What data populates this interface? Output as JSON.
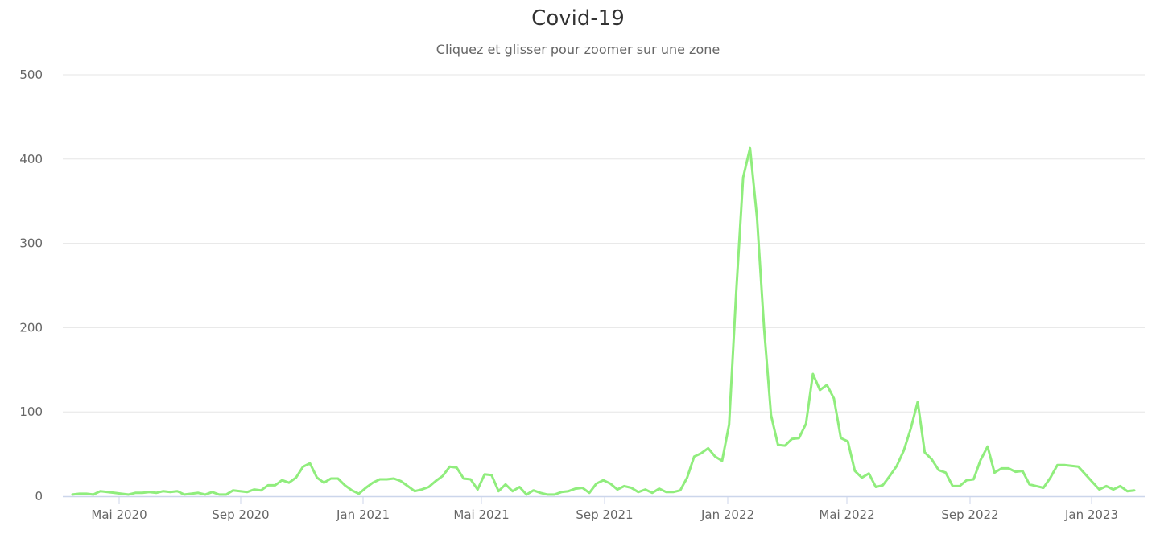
{
  "header": {
    "title": "Covid-19",
    "subtitle": "Cliquez et glisser pour zoomer sur une zone"
  },
  "colors": {
    "series": "#90ed7d",
    "grid": "#e6e6e6",
    "axis": "#ccd6eb",
    "label": "#666666"
  },
  "chart_data": {
    "type": "line",
    "title": "Covid-19",
    "subtitle": "Cliquez et glisser pour zoomer sur une zone",
    "xlabel": "",
    "ylabel": "",
    "ylim": [
      0,
      500
    ],
    "yticks": [
      0,
      100,
      200,
      300,
      400,
      500
    ],
    "xticks": [
      "Mai 2020",
      "Sep 2020",
      "Jan 2021",
      "Mai 2021",
      "Sep 2021",
      "Jan 2022",
      "Mai 2022",
      "Sep 2022",
      "Jan 2023"
    ],
    "grid": true,
    "legend": false,
    "x_start": "2020-03-16",
    "x_interval": "weekly",
    "series": [
      {
        "name": "Covid-19",
        "values": [
          2,
          3,
          3,
          2,
          6,
          5,
          4,
          3,
          2,
          4,
          4,
          5,
          4,
          6,
          5,
          6,
          2,
          3,
          4,
          2,
          5,
          2,
          2,
          7,
          6,
          5,
          8,
          7,
          13,
          13,
          19,
          16,
          22,
          35,
          39,
          22,
          16,
          21,
          21,
          13,
          7,
          3,
          10,
          16,
          20,
          20,
          21,
          18,
          12,
          6,
          8,
          11,
          18,
          24,
          35,
          34,
          21,
          20,
          8,
          26,
          25,
          6,
          14,
          6,
          11,
          2,
          7,
          4,
          2,
          2,
          5,
          6,
          9,
          10,
          4,
          15,
          19,
          15,
          8,
          12,
          10,
          5,
          8,
          4,
          9,
          5,
          5,
          7,
          22,
          47,
          51,
          57,
          47,
          42,
          85,
          240,
          378,
          413,
          330,
          200,
          96,
          61,
          60,
          68,
          69,
          86,
          145,
          126,
          132,
          116,
          69,
          65,
          30,
          22,
          27,
          11,
          13,
          24,
          36,
          54,
          80,
          112,
          52,
          44,
          31,
          28,
          12,
          12,
          19,
          20,
          43,
          59,
          28,
          33,
          33,
          29,
          30,
          14,
          12,
          10,
          22,
          37,
          37,
          36,
          35,
          26,
          17,
          8,
          12,
          8,
          12,
          6,
          7
        ]
      }
    ]
  }
}
